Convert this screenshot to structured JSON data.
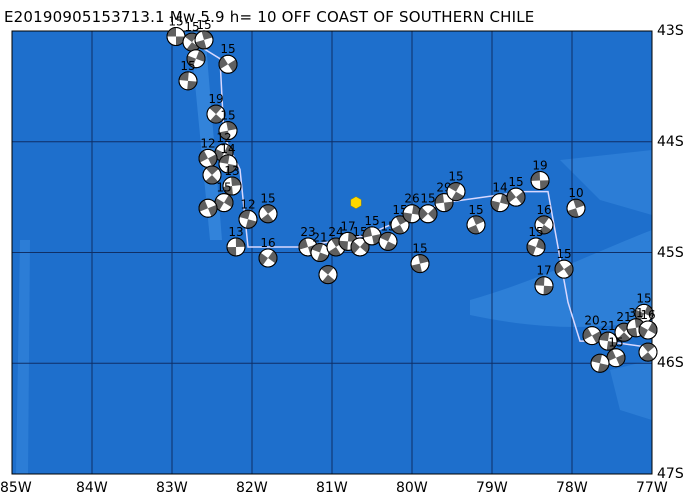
{
  "title": "E20190905153713.1 Mw 5.9  h= 10 OFF COAST OF SOUTHERN CHILE",
  "map": {
    "lon_ticks": [
      "85W",
      "84W",
      "83W",
      "82W",
      "81W",
      "80W",
      "79W",
      "78W",
      "77W"
    ],
    "lat_ticks": [
      "43S",
      "44S",
      "45S",
      "46S",
      "47S"
    ],
    "colors": {
      "deep_ocean": "#1e6fcc",
      "shallow_ocean": "#3a8ce0",
      "grid": "#0f2f66",
      "trench_line": "#d8d8ff",
      "epicenter": "#ffd800",
      "beachball_dark": "#606060"
    },
    "epicenter": {
      "lon": -80.7,
      "lat": -44.55
    },
    "fault_trace": [
      [
        -82.85,
        -43.05
      ],
      [
        -82.4,
        -43.25
      ],
      [
        -82.35,
        -43.95
      ],
      [
        -82.15,
        -44.25
      ],
      [
        -82.05,
        -44.95
      ],
      [
        -81.4,
        -44.95
      ],
      [
        -80.6,
        -44.85
      ],
      [
        -79.6,
        -44.55
      ],
      [
        -78.6,
        -44.45
      ],
      [
        -78.3,
        -44.45
      ],
      [
        -78.05,
        -45.45
      ],
      [
        -77.9,
        -45.8
      ],
      [
        -77.6,
        -45.8
      ],
      [
        -77.1,
        -45.85
      ]
    ],
    "mechanisms": [
      {
        "lon": -82.95,
        "lat": -43.05,
        "depth": "15"
      },
      {
        "lon": -82.75,
        "lat": -43.1,
        "depth": "15"
      },
      {
        "lon": -82.6,
        "lat": -43.08,
        "depth": "15"
      },
      {
        "lon": -82.7,
        "lat": -43.25,
        "depth": ""
      },
      {
        "lon": -82.3,
        "lat": -43.3,
        "depth": "15"
      },
      {
        "lon": -82.8,
        "lat": -43.45,
        "depth": "15"
      },
      {
        "lon": -82.45,
        "lat": -43.75,
        "depth": "19"
      },
      {
        "lon": -82.3,
        "lat": -43.9,
        "depth": "15"
      },
      {
        "lon": -82.35,
        "lat": -44.1,
        "depth": "12"
      },
      {
        "lon": -82.55,
        "lat": -44.15,
        "depth": "12"
      },
      {
        "lon": -82.3,
        "lat": -44.2,
        "depth": "14"
      },
      {
        "lon": -82.5,
        "lat": -44.3,
        "depth": ""
      },
      {
        "lon": -82.25,
        "lat": -44.4,
        "depth": "13"
      },
      {
        "lon": -82.35,
        "lat": -44.55,
        "depth": "15"
      },
      {
        "lon": -82.55,
        "lat": -44.6,
        "depth": ""
      },
      {
        "lon": -82.05,
        "lat": -44.7,
        "depth": "12"
      },
      {
        "lon": -81.8,
        "lat": -44.65,
        "depth": "15"
      },
      {
        "lon": -82.2,
        "lat": -44.95,
        "depth": "13"
      },
      {
        "lon": -81.8,
        "lat": -45.05,
        "depth": "16"
      },
      {
        "lon": -81.3,
        "lat": -44.95,
        "depth": "23"
      },
      {
        "lon": -81.15,
        "lat": -45.0,
        "depth": "21"
      },
      {
        "lon": -80.95,
        "lat": -44.95,
        "depth": "24"
      },
      {
        "lon": -80.8,
        "lat": -44.9,
        "depth": "17"
      },
      {
        "lon": -80.65,
        "lat": -44.95,
        "depth": "15"
      },
      {
        "lon": -80.5,
        "lat": -44.85,
        "depth": "15"
      },
      {
        "lon": -80.3,
        "lat": -44.9,
        "depth": "15"
      },
      {
        "lon": -80.15,
        "lat": -44.75,
        "depth": "15"
      },
      {
        "lon": -80.0,
        "lat": -44.65,
        "depth": "26"
      },
      {
        "lon": -79.8,
        "lat": -44.65,
        "depth": "15"
      },
      {
        "lon": -79.6,
        "lat": -44.55,
        "depth": "29"
      },
      {
        "lon": -79.45,
        "lat": -44.45,
        "depth": "15"
      },
      {
        "lon": -79.2,
        "lat": -44.75,
        "depth": "15"
      },
      {
        "lon": -78.9,
        "lat": -44.55,
        "depth": "14"
      },
      {
        "lon": -78.7,
        "lat": -44.5,
        "depth": "15"
      },
      {
        "lon": -78.4,
        "lat": -44.35,
        "depth": "19"
      },
      {
        "lon": -78.35,
        "lat": -44.75,
        "depth": "16"
      },
      {
        "lon": -77.95,
        "lat": -44.6,
        "depth": "10"
      },
      {
        "lon": -78.45,
        "lat": -44.95,
        "depth": "15"
      },
      {
        "lon": -78.1,
        "lat": -45.15,
        "depth": "15"
      },
      {
        "lon": -78.35,
        "lat": -45.3,
        "depth": "17"
      },
      {
        "lon": -81.05,
        "lat": -45.2,
        "depth": ""
      },
      {
        "lon": -79.9,
        "lat": -45.1,
        "depth": "15"
      },
      {
        "lon": -77.1,
        "lat": -45.55,
        "depth": "15"
      },
      {
        "lon": -77.75,
        "lat": -45.75,
        "depth": "20"
      },
      {
        "lon": -77.55,
        "lat": -45.8,
        "depth": "21"
      },
      {
        "lon": -77.35,
        "lat": -45.72,
        "depth": "21"
      },
      {
        "lon": -77.2,
        "lat": -45.68,
        "depth": "31"
      },
      {
        "lon": -77.05,
        "lat": -45.7,
        "depth": "16"
      },
      {
        "lon": -77.45,
        "lat": -45.95,
        "depth": "15"
      },
      {
        "lon": -77.65,
        "lat": -46.0,
        "depth": ""
      },
      {
        "lon": -77.05,
        "lat": -45.9,
        "depth": ""
      }
    ]
  }
}
